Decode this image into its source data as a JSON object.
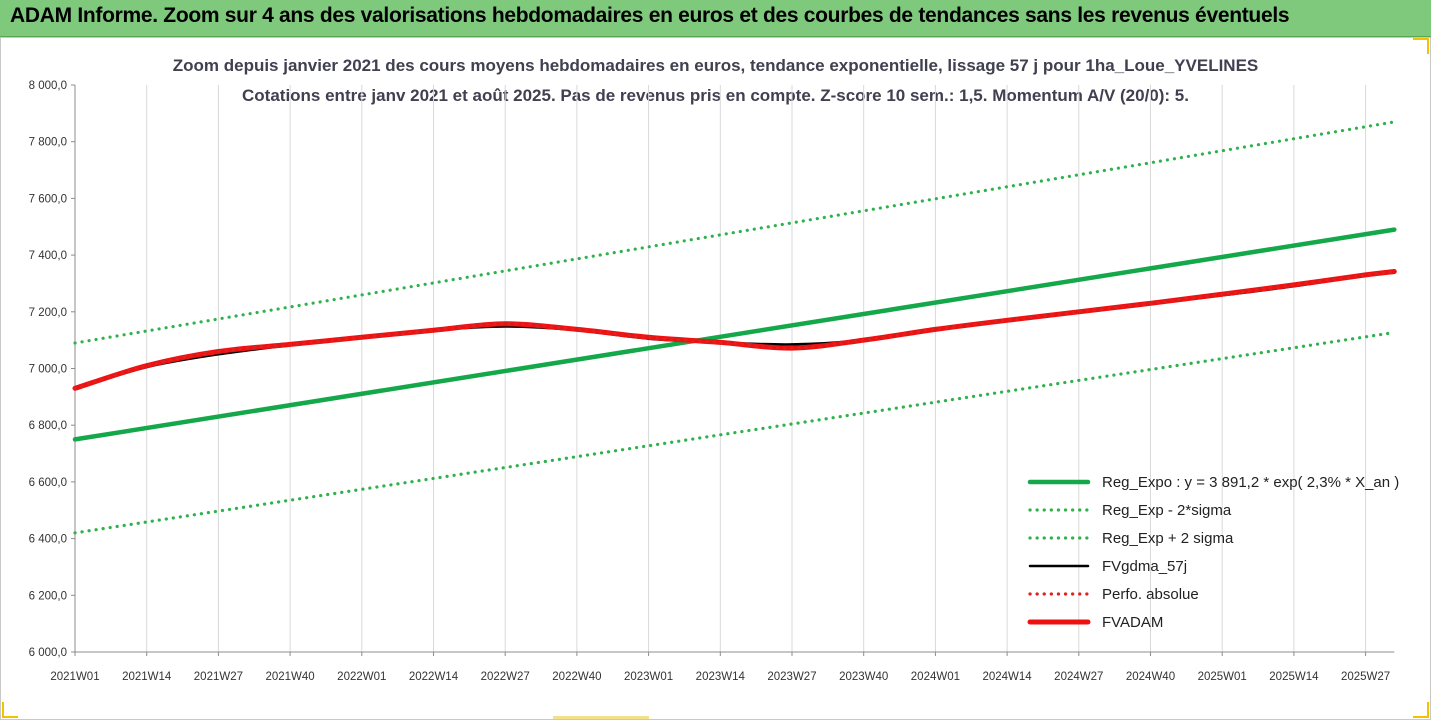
{
  "banner": {
    "title": "ADAM Informe. Zoom sur 4 ans des valorisations hebdomadaires en euros et des courbes de tendances sans les revenus éventuels"
  },
  "colors": {
    "banner": "#7ec97b",
    "trend": "#14a84a",
    "bands": "#2fb24c",
    "fvgdma": "#000000",
    "fvadam": "#ee1111",
    "perfo": "#dd2222"
  },
  "chart_data": {
    "type": "line",
    "title": "Zoom depuis janvier 2021 des cours moyens hebdomadaires en euros, tendance exponentielle, lissage 57 j pour 1ha_Loue_YVELINES",
    "subtitle": "Cotations entre janv 2021 et août 2025.  Pas de revenus pris en compte. Z-score 10 sem.: 1,5. Momentum A/V (20/0): 5.",
    "ylim": [
      6000,
      8000
    ],
    "y_ticks": [
      "8 000,0",
      "7 800,0",
      "7 600,0",
      "7 400,0",
      "7 200,0",
      "7 000,0",
      "6 800,0",
      "6 600,0",
      "6 400,0",
      "6 200,0",
      "6 000,0"
    ],
    "y_tick_values": [
      8000,
      7800,
      7600,
      7400,
      7200,
      7000,
      6800,
      6600,
      6400,
      6200,
      6000
    ],
    "categories": [
      "2021W01",
      "2021W14",
      "2021W27",
      "2021W40",
      "2022W01",
      "2022W14",
      "2022W27",
      "2022W40",
      "2023W01",
      "2023W14",
      "2023W27",
      "2023W40",
      "2024W01",
      "2024W14",
      "2024W27",
      "2024W40",
      "2025W01",
      "2025W14",
      "2025W27"
    ],
    "x_last_index": 18.4,
    "grid": "vertical",
    "legend_position": "bottom-right",
    "series": [
      {
        "name": "Reg_Expo : y = 3 891,2 * exp( 2,3% *  X_an )",
        "style": "solid-thick",
        "color": "#14a84a",
        "points": [
          [
            0,
            6750
          ],
          [
            18.4,
            7490
          ]
        ]
      },
      {
        "name": "Reg_Exp - 2*sigma",
        "style": "dotted",
        "color": "#2fb24c",
        "points": [
          [
            0,
            6420
          ],
          [
            18.4,
            7127
          ]
        ]
      },
      {
        "name": "Reg_Exp + 2 sigma",
        "style": "dotted",
        "color": "#2fb24c",
        "points": [
          [
            0,
            7090
          ],
          [
            18.4,
            7870
          ]
        ]
      },
      {
        "name": "FVgdma_57j",
        "style": "solid",
        "color": "#000000",
        "points": [
          [
            0,
            6930
          ],
          [
            1,
            7005
          ],
          [
            2,
            7050
          ],
          [
            3,
            7082
          ],
          [
            4,
            7110
          ],
          [
            5,
            7135
          ],
          [
            6,
            7148
          ],
          [
            7,
            7135
          ],
          [
            8,
            7105
          ],
          [
            9,
            7092
          ],
          [
            10,
            7085
          ],
          [
            11,
            7100
          ],
          [
            12,
            7135
          ],
          [
            13,
            7168
          ],
          [
            14,
            7198
          ],
          [
            15,
            7228
          ],
          [
            16,
            7258
          ],
          [
            17,
            7290
          ],
          [
            18,
            7328
          ],
          [
            18.4,
            7338
          ]
        ]
      },
      {
        "name": "Perfo. absolue",
        "style": "dotted",
        "color": "#dd2222",
        "points": [
          [
            0,
            6930
          ],
          [
            1,
            7010
          ],
          [
            2,
            7060
          ],
          [
            3,
            7085
          ],
          [
            4,
            7110
          ],
          [
            5,
            7135
          ],
          [
            6,
            7158
          ],
          [
            7,
            7138
          ],
          [
            8,
            7110
          ],
          [
            9,
            7092
          ],
          [
            10,
            7072
          ],
          [
            11,
            7100
          ],
          [
            12,
            7138
          ],
          [
            13,
            7170
          ],
          [
            14,
            7200
          ],
          [
            15,
            7230
          ],
          [
            16,
            7262
          ],
          [
            17,
            7295
          ],
          [
            18,
            7330
          ],
          [
            18.4,
            7342
          ]
        ]
      },
      {
        "name": "FVADAM",
        "style": "solid-thick",
        "color": "#ee1111",
        "points": [
          [
            0,
            6930
          ],
          [
            1,
            7010
          ],
          [
            2,
            7060
          ],
          [
            3,
            7085
          ],
          [
            4,
            7110
          ],
          [
            5,
            7135
          ],
          [
            6,
            7158
          ],
          [
            7,
            7138
          ],
          [
            8,
            7110
          ],
          [
            9,
            7092
          ],
          [
            10,
            7072
          ],
          [
            11,
            7100
          ],
          [
            12,
            7138
          ],
          [
            13,
            7170
          ],
          [
            14,
            7200
          ],
          [
            15,
            7230
          ],
          [
            16,
            7262
          ],
          [
            17,
            7295
          ],
          [
            18,
            7330
          ],
          [
            18.4,
            7342
          ]
        ]
      }
    ]
  }
}
